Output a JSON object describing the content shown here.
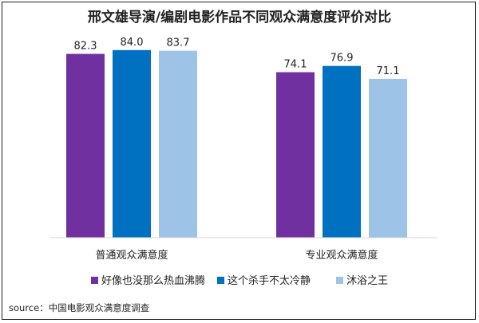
{
  "chart_data": {
    "type": "bar",
    "title": "邢文雄导演/编剧电影作品不同观众满意度评价对比",
    "categories": [
      "普通观众满意度",
      "专业观众满意度"
    ],
    "series": [
      {
        "name": "好像也没那么热血沸腾",
        "values": [
          82.3,
          74.1
        ],
        "color": "#7030A0"
      },
      {
        "name": "这个杀手不太冷静",
        "values": [
          84.0,
          76.9
        ],
        "color": "#0070C0"
      },
      {
        "name": "沐浴之王",
        "values": [
          83.7,
          71.1
        ],
        "color": "#9DC3E6"
      }
    ],
    "value_labels": [
      [
        "82.3",
        "74.1"
      ],
      [
        "84.0",
        "76.9"
      ],
      [
        "83.7",
        "71.1"
      ]
    ],
    "ylim": [
      0,
      90
    ],
    "grid": false,
    "legend_position": "bottom",
    "xlabel": "",
    "ylabel": ""
  },
  "source": "source：中国电影观众满意度调查"
}
